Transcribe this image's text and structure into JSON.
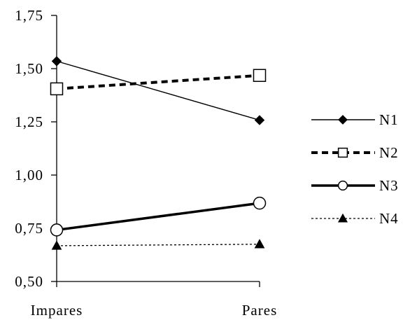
{
  "chart_data": {
    "type": "line",
    "categories": [
      "Impares",
      "Pares"
    ],
    "series": [
      {
        "name": "N1",
        "values": [
          1.535,
          1.258
        ],
        "line_style": "solid",
        "line_weight": "thin",
        "marker": "diamond",
        "marker_fill": "#000000"
      },
      {
        "name": "N2",
        "values": [
          1.405,
          1.468
        ],
        "line_style": "dashed",
        "line_weight": "thick",
        "marker": "square",
        "marker_fill": "#ffffff"
      },
      {
        "name": "N3",
        "values": [
          0.742,
          0.868
        ],
        "line_style": "solid",
        "line_weight": "thick",
        "marker": "circle",
        "marker_fill": "#ffffff"
      },
      {
        "name": "N4",
        "values": [
          0.668,
          0.675
        ],
        "line_style": "dotted",
        "line_weight": "thin",
        "marker": "triangle",
        "marker_fill": "#000000"
      }
    ],
    "yticks": [
      "0,50",
      "0,75",
      "1,00",
      "1,25",
      "1,50",
      "1,75"
    ],
    "ylim": [
      0.5,
      1.75
    ],
    "grid": false,
    "legend_position": "right",
    "title": "",
    "xlabel": "",
    "ylabel": "",
    "colors": {
      "line": "#000000",
      "background": "#ffffff"
    }
  }
}
